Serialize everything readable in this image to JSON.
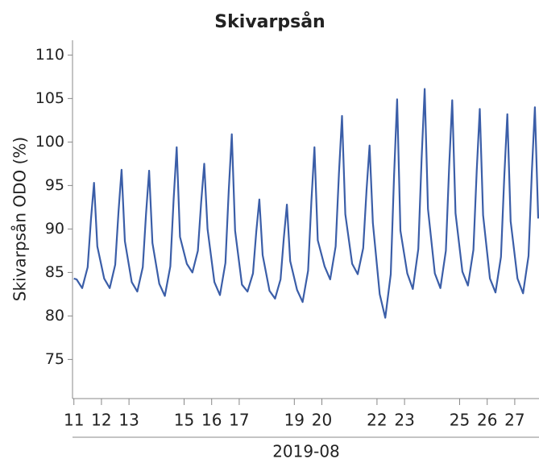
{
  "chart_data": {
    "type": "line",
    "title": "Skivarpsån",
    "xlabel": "2019-08",
    "ylabel": "Skivarpsån ODO (%)",
    "x": [
      11.0,
      11.1,
      11.3,
      11.5,
      11.62,
      11.73,
      11.85,
      12.1,
      12.3,
      12.5,
      12.62,
      12.73,
      12.85,
      13.1,
      13.3,
      13.5,
      13.62,
      13.73,
      13.85,
      14.1,
      14.3,
      14.5,
      14.62,
      14.73,
      14.85,
      15.1,
      15.3,
      15.5,
      15.62,
      15.73,
      15.85,
      16.1,
      16.3,
      16.5,
      16.62,
      16.73,
      16.85,
      17.1,
      17.3,
      17.5,
      17.62,
      17.73,
      17.85,
      18.1,
      18.3,
      18.5,
      18.62,
      18.73,
      18.85,
      19.1,
      19.3,
      19.5,
      19.62,
      19.73,
      19.85,
      20.1,
      20.3,
      20.5,
      20.62,
      20.73,
      20.85,
      21.1,
      21.3,
      21.5,
      21.62,
      21.73,
      21.85,
      22.1,
      22.3,
      22.5,
      22.62,
      22.73,
      22.85,
      23.1,
      23.3,
      23.5,
      23.62,
      23.73,
      23.85,
      24.1,
      24.3,
      24.5,
      24.62,
      24.73,
      24.85,
      25.1,
      25.3,
      25.5,
      25.62,
      25.73,
      25.85,
      26.1,
      26.3,
      26.5,
      26.62,
      26.73,
      26.85,
      27.1,
      27.3,
      27.5,
      27.62,
      27.73,
      27.85
    ],
    "series": [
      {
        "name": "Skivarpsån ODO (%)",
        "color": "#3b5ea8",
        "values": [
          84.3,
          84.2,
          83.2,
          85.6,
          91.1,
          95.3,
          88.0,
          84.3,
          83.2,
          85.9,
          92.0,
          96.8,
          88.6,
          83.9,
          82.8,
          85.6,
          91.8,
          96.7,
          88.4,
          83.7,
          82.3,
          85.7,
          93.4,
          99.4,
          89.1,
          86.0,
          85.0,
          87.5,
          93.1,
          97.5,
          90.0,
          83.9,
          82.4,
          86.1,
          94.4,
          100.9,
          89.8,
          83.6,
          82.8,
          84.9,
          89.7,
          93.4,
          87.0,
          82.9,
          82.0,
          84.2,
          89.0,
          92.8,
          86.3,
          83.0,
          81.6,
          85.2,
          93.2,
          99.4,
          88.7,
          85.7,
          84.2,
          88.0,
          96.4,
          103.0,
          91.7,
          86.0,
          84.8,
          87.8,
          94.4,
          99.6,
          90.7,
          82.5,
          79.8,
          84.8,
          96.1,
          104.9,
          89.8,
          84.9,
          83.1,
          87.7,
          98.1,
          106.1,
          92.3,
          84.9,
          83.2,
          87.5,
          97.2,
          104.8,
          91.8,
          85.1,
          83.5,
          87.6,
          96.7,
          103.8,
          91.6,
          84.3,
          82.7,
          86.8,
          96.0,
          103.2,
          90.9,
          84.3,
          82.6,
          86.9,
          96.5,
          104.0,
          91.2
        ]
      }
    ],
    "xlim": [
      10.95,
      27.88
    ],
    "xticks": [
      11,
      12,
      13,
      15,
      16,
      17,
      19,
      20,
      22,
      23,
      25,
      26,
      27
    ],
    "ylim": [
      70.5,
      111.7
    ],
    "yticks": [
      75,
      80,
      85,
      90,
      95,
      100,
      105,
      110
    ],
    "grid": false
  }
}
